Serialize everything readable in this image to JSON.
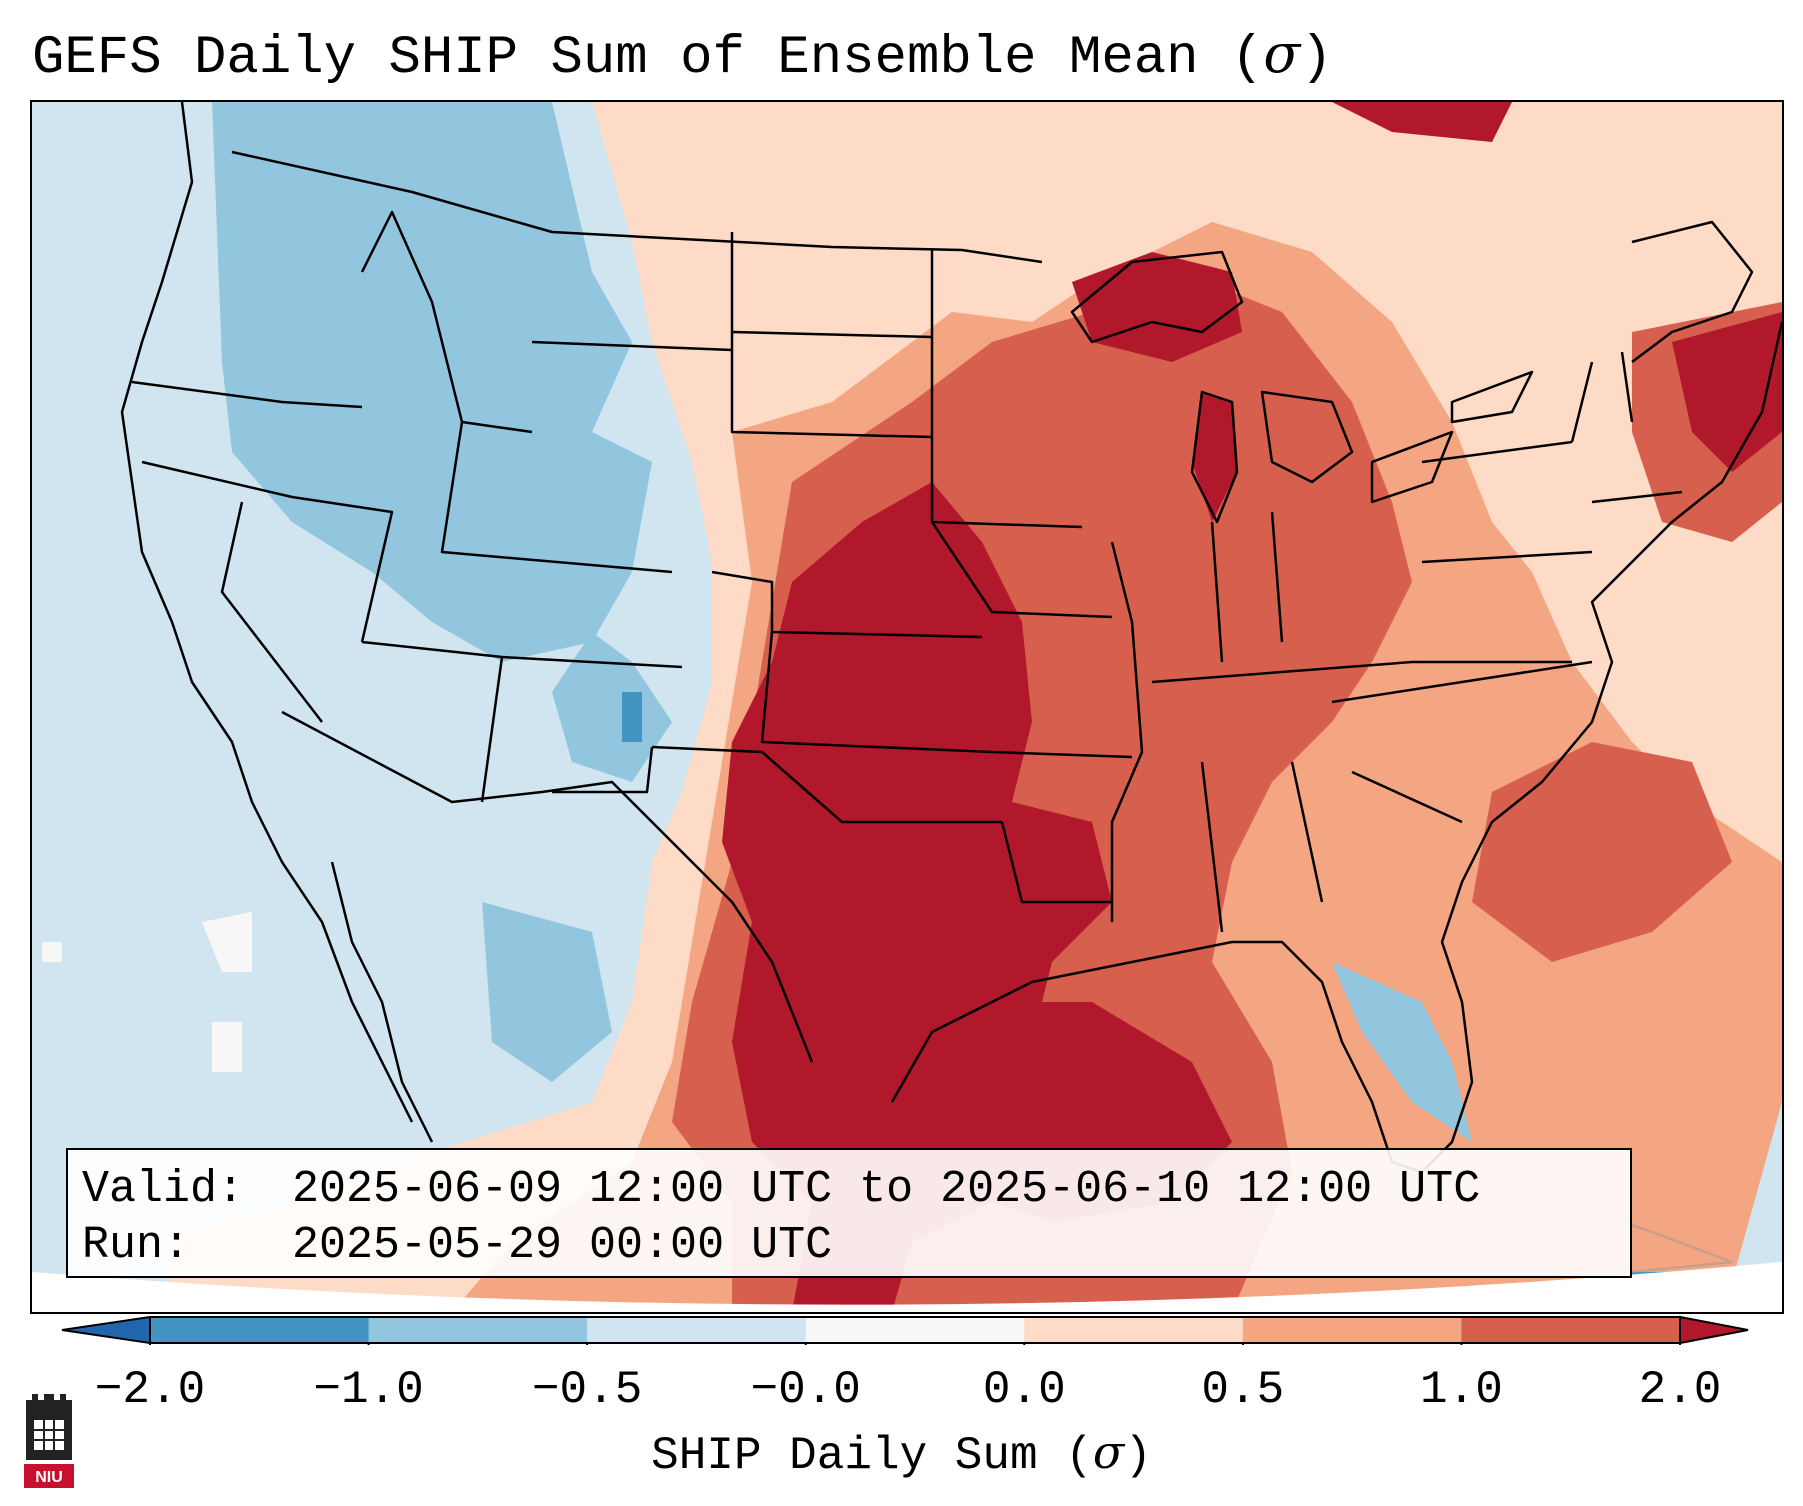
{
  "title": {
    "prefix": "GEFS Daily SHIP Sum of Ensemble Mean (",
    "symbol": "σ",
    "suffix": ")"
  },
  "info": {
    "valid_label": "Valid:",
    "valid_value": "2025-06-09 12:00 UTC to 2025-06-10 12:00 UTC",
    "run_label": "Run:",
    "run_value": "2025-05-29 00:00 UTC"
  },
  "colorbar": {
    "label_prefix": "SHIP Daily Sum (",
    "label_symbol": "σ",
    "label_suffix": ")",
    "ticks": [
      "−2.0",
      "−1.0",
      "−0.5",
      "−0.0",
      "0.0",
      "0.5",
      "1.0",
      "2.0"
    ],
    "bins": [
      {
        "range": "-2.0 to -1.0",
        "color": "#4393c3"
      },
      {
        "range": "-1.0 to -0.5",
        "color": "#92c5de"
      },
      {
        "range": "-0.5 to -0.0",
        "color": "#d1e5f0"
      },
      {
        "range": "-0.0 to 0.0",
        "color": "#f7f7f7"
      },
      {
        "range": "0.0 to 0.5",
        "color": "#fddbc7"
      },
      {
        "range": "0.5 to 1.0",
        "color": "#f4a582"
      },
      {
        "range": "1.0 to 2.0",
        "color": "#d6604d"
      }
    ],
    "under_color": "#2166ac",
    "over_color": "#b2182b"
  },
  "logo": {
    "text": "NIU",
    "color": "#c8102e"
  },
  "map": {
    "projection": "Lambert Conformal, CONUS",
    "regions": [
      {
        "name": "Pacific Northwest / Northern Rockies",
        "range": "-1.0 to -0.5"
      },
      {
        "name": "Great Basin / Southwest",
        "range": "-0.5 to -0.0"
      },
      {
        "name": "Southern Plains / Texas",
        "range": "> 2.0"
      },
      {
        "name": "Upper Midwest / Great Lakes",
        "range": "1.0 to 2.0"
      },
      {
        "name": "Northeast / New England",
        "range": "1.0 to 2.0"
      },
      {
        "name": "Gulf of Mexico",
        "range": "1.0 to 2.0"
      },
      {
        "name": "Southeast",
        "range": "0.0 to 1.0"
      }
    ]
  }
}
